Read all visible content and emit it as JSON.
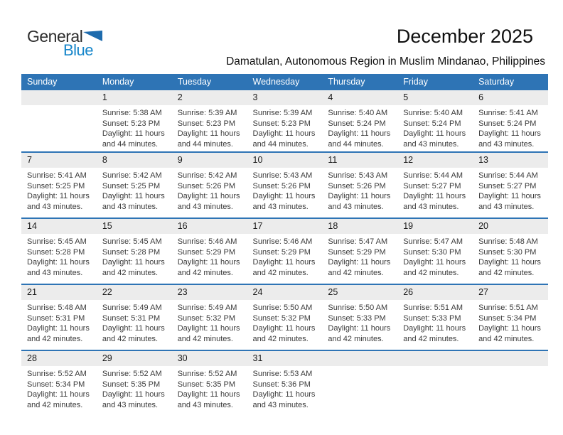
{
  "logo": {
    "part1": "General",
    "part2": "Blue"
  },
  "page": {
    "title": "December 2025",
    "location": "Damatulan, Autonomous Region in Muslim Mindanao, Philippines"
  },
  "colors": {
    "header_blue": "#2e74b5",
    "week_divider_blue": "#2e74b5",
    "day_strip_gray": "#ececec",
    "logo_text_blue": "#1585ca",
    "logo_triangle_blue": "#1e6bad"
  },
  "calendar": {
    "weekdays": [
      "Sunday",
      "Monday",
      "Tuesday",
      "Wednesday",
      "Thursday",
      "Friday",
      "Saturday"
    ],
    "weeks": [
      [
        null,
        {
          "day": "1",
          "sunrise": "Sunrise: 5:38 AM",
          "sunset": "Sunset: 5:23 PM",
          "daylight": "Daylight: 11 hours and 44 minutes."
        },
        {
          "day": "2",
          "sunrise": "Sunrise: 5:39 AM",
          "sunset": "Sunset: 5:23 PM",
          "daylight": "Daylight: 11 hours and 44 minutes."
        },
        {
          "day": "3",
          "sunrise": "Sunrise: 5:39 AM",
          "sunset": "Sunset: 5:23 PM",
          "daylight": "Daylight: 11 hours and 44 minutes."
        },
        {
          "day": "4",
          "sunrise": "Sunrise: 5:40 AM",
          "sunset": "Sunset: 5:24 PM",
          "daylight": "Daylight: 11 hours and 44 minutes."
        },
        {
          "day": "5",
          "sunrise": "Sunrise: 5:40 AM",
          "sunset": "Sunset: 5:24 PM",
          "daylight": "Daylight: 11 hours and 43 minutes."
        },
        {
          "day": "6",
          "sunrise": "Sunrise: 5:41 AM",
          "sunset": "Sunset: 5:24 PM",
          "daylight": "Daylight: 11 hours and 43 minutes."
        }
      ],
      [
        {
          "day": "7",
          "sunrise": "Sunrise: 5:41 AM",
          "sunset": "Sunset: 5:25 PM",
          "daylight": "Daylight: 11 hours and 43 minutes."
        },
        {
          "day": "8",
          "sunrise": "Sunrise: 5:42 AM",
          "sunset": "Sunset: 5:25 PM",
          "daylight": "Daylight: 11 hours and 43 minutes."
        },
        {
          "day": "9",
          "sunrise": "Sunrise: 5:42 AM",
          "sunset": "Sunset: 5:26 PM",
          "daylight": "Daylight: 11 hours and 43 minutes."
        },
        {
          "day": "10",
          "sunrise": "Sunrise: 5:43 AM",
          "sunset": "Sunset: 5:26 PM",
          "daylight": "Daylight: 11 hours and 43 minutes."
        },
        {
          "day": "11",
          "sunrise": "Sunrise: 5:43 AM",
          "sunset": "Sunset: 5:26 PM",
          "daylight": "Daylight: 11 hours and 43 minutes."
        },
        {
          "day": "12",
          "sunrise": "Sunrise: 5:44 AM",
          "sunset": "Sunset: 5:27 PM",
          "daylight": "Daylight: 11 hours and 43 minutes."
        },
        {
          "day": "13",
          "sunrise": "Sunrise: 5:44 AM",
          "sunset": "Sunset: 5:27 PM",
          "daylight": "Daylight: 11 hours and 43 minutes."
        }
      ],
      [
        {
          "day": "14",
          "sunrise": "Sunrise: 5:45 AM",
          "sunset": "Sunset: 5:28 PM",
          "daylight": "Daylight: 11 hours and 43 minutes."
        },
        {
          "day": "15",
          "sunrise": "Sunrise: 5:45 AM",
          "sunset": "Sunset: 5:28 PM",
          "daylight": "Daylight: 11 hours and 42 minutes."
        },
        {
          "day": "16",
          "sunrise": "Sunrise: 5:46 AM",
          "sunset": "Sunset: 5:29 PM",
          "daylight": "Daylight: 11 hours and 42 minutes."
        },
        {
          "day": "17",
          "sunrise": "Sunrise: 5:46 AM",
          "sunset": "Sunset: 5:29 PM",
          "daylight": "Daylight: 11 hours and 42 minutes."
        },
        {
          "day": "18",
          "sunrise": "Sunrise: 5:47 AM",
          "sunset": "Sunset: 5:29 PM",
          "daylight": "Daylight: 11 hours and 42 minutes."
        },
        {
          "day": "19",
          "sunrise": "Sunrise: 5:47 AM",
          "sunset": "Sunset: 5:30 PM",
          "daylight": "Daylight: 11 hours and 42 minutes."
        },
        {
          "day": "20",
          "sunrise": "Sunrise: 5:48 AM",
          "sunset": "Sunset: 5:30 PM",
          "daylight": "Daylight: 11 hours and 42 minutes."
        }
      ],
      [
        {
          "day": "21",
          "sunrise": "Sunrise: 5:48 AM",
          "sunset": "Sunset: 5:31 PM",
          "daylight": "Daylight: 11 hours and 42 minutes."
        },
        {
          "day": "22",
          "sunrise": "Sunrise: 5:49 AM",
          "sunset": "Sunset: 5:31 PM",
          "daylight": "Daylight: 11 hours and 42 minutes."
        },
        {
          "day": "23",
          "sunrise": "Sunrise: 5:49 AM",
          "sunset": "Sunset: 5:32 PM",
          "daylight": "Daylight: 11 hours and 42 minutes."
        },
        {
          "day": "24",
          "sunrise": "Sunrise: 5:50 AM",
          "sunset": "Sunset: 5:32 PM",
          "daylight": "Daylight: 11 hours and 42 minutes."
        },
        {
          "day": "25",
          "sunrise": "Sunrise: 5:50 AM",
          "sunset": "Sunset: 5:33 PM",
          "daylight": "Daylight: 11 hours and 42 minutes."
        },
        {
          "day": "26",
          "sunrise": "Sunrise: 5:51 AM",
          "sunset": "Sunset: 5:33 PM",
          "daylight": "Daylight: 11 hours and 42 minutes."
        },
        {
          "day": "27",
          "sunrise": "Sunrise: 5:51 AM",
          "sunset": "Sunset: 5:34 PM",
          "daylight": "Daylight: 11 hours and 42 minutes."
        }
      ],
      [
        {
          "day": "28",
          "sunrise": "Sunrise: 5:52 AM",
          "sunset": "Sunset: 5:34 PM",
          "daylight": "Daylight: 11 hours and 42 minutes."
        },
        {
          "day": "29",
          "sunrise": "Sunrise: 5:52 AM",
          "sunset": "Sunset: 5:35 PM",
          "daylight": "Daylight: 11 hours and 43 minutes."
        },
        {
          "day": "30",
          "sunrise": "Sunrise: 5:52 AM",
          "sunset": "Sunset: 5:35 PM",
          "daylight": "Daylight: 11 hours and 43 minutes."
        },
        {
          "day": "31",
          "sunrise": "Sunrise: 5:53 AM",
          "sunset": "Sunset: 5:36 PM",
          "daylight": "Daylight: 11 hours and 43 minutes."
        },
        null,
        null,
        null
      ]
    ]
  }
}
